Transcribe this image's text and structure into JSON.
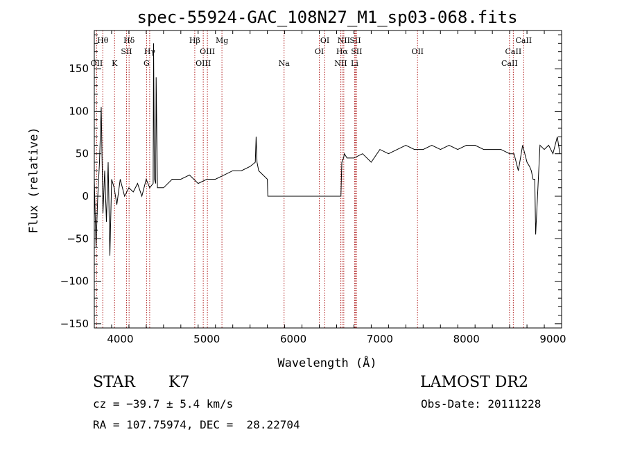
{
  "chart_data": {
    "type": "line",
    "title": "spec-55924-GAC_108N27_M1_sp03-068.fits",
    "xlabel": "Wavelength (Å)",
    "ylabel": "Flux (relative)",
    "xlim": [
      3700,
      9100
    ],
    "ylim": [
      -155,
      195
    ],
    "x_ticks": [
      4000,
      5000,
      6000,
      7000,
      8000,
      9000
    ],
    "y_ticks": [
      -150,
      -100,
      -50,
      0,
      50,
      100,
      150
    ],
    "spectrum": {
      "x": [
        3700,
        3720,
        3740,
        3760,
        3780,
        3800,
        3820,
        3840,
        3860,
        3880,
        3900,
        3930,
        3960,
        4000,
        4050,
        4100,
        4150,
        4200,
        4250,
        4300,
        4340,
        4380,
        4385,
        4395,
        4410,
        4415,
        4430,
        4500,
        4600,
        4700,
        4800,
        4900,
        5000,
        5100,
        5200,
        5300,
        5400,
        5500,
        5560,
        5570,
        5580,
        5600,
        5700,
        5705,
        5720,
        6550,
        6560,
        6580,
        6590,
        6620,
        6700,
        6800,
        6900,
        7000,
        7100,
        7200,
        7300,
        7400,
        7500,
        7600,
        7700,
        7800,
        7900,
        8000,
        8100,
        8200,
        8300,
        8400,
        8500,
        8550,
        8600,
        8650,
        8700,
        8730,
        8750,
        8770,
        8790,
        8800,
        8850,
        8900,
        8950,
        9000,
        9050,
        9080
      ],
      "y": [
        20,
        -60,
        0,
        40,
        105,
        -20,
        30,
        -30,
        40,
        -70,
        20,
        10,
        -10,
        20,
        0,
        10,
        5,
        15,
        0,
        20,
        10,
        15,
        180,
        20,
        15,
        140,
        10,
        10,
        20,
        20,
        25,
        15,
        20,
        20,
        25,
        30,
        30,
        35,
        40,
        70,
        40,
        30,
        20,
        0,
        0,
        0,
        40,
        45,
        50,
        45,
        45,
        50,
        40,
        55,
        50,
        55,
        60,
        55,
        55,
        60,
        55,
        60,
        55,
        60,
        60,
        55,
        55,
        55,
        50,
        50,
        30,
        60,
        40,
        35,
        30,
        20,
        20,
        -45,
        60,
        55,
        60,
        50,
        70,
        50
      ]
    },
    "lines": [
      {
        "label": "Hθ",
        "wavelength": 3798,
        "row": "top"
      },
      {
        "label": "OII",
        "wavelength": 3727,
        "row": "bottom"
      },
      {
        "label": "K",
        "wavelength": 3934,
        "row": "bottom"
      },
      {
        "label": "Hδ",
        "wavelength": 4102,
        "row": "top"
      },
      {
        "label": "SII",
        "wavelength": 4072,
        "row": "middle"
      },
      {
        "label": "Hγ",
        "wavelength": 4340,
        "row": "middle"
      },
      {
        "label": "G",
        "wavelength": 4304,
        "row": "bottom"
      },
      {
        "label": "Hβ",
        "wavelength": 4861,
        "row": "top"
      },
      {
        "label": "OIII",
        "wavelength": 5007,
        "row": "middle"
      },
      {
        "label": "OIII",
        "wavelength": 4959,
        "row": "bottom"
      },
      {
        "label": "Mg",
        "wavelength": 5175,
        "row": "top"
      },
      {
        "label": "Na",
        "wavelength": 5893,
        "row": "bottom"
      },
      {
        "label": "OI",
        "wavelength": 6364,
        "row": "top"
      },
      {
        "label": "OI",
        "wavelength": 6300,
        "row": "middle"
      },
      {
        "label": "NII",
        "wavelength": 6583,
        "row": "top"
      },
      {
        "label": "SII",
        "wavelength": 6716,
        "row": "top"
      },
      {
        "label": "Hα",
        "wavelength": 6563,
        "row": "middle"
      },
      {
        "label": "SII",
        "wavelength": 6731,
        "row": "middle"
      },
      {
        "label": "NII",
        "wavelength": 6548,
        "row": "bottom"
      },
      {
        "label": "Li",
        "wavelength": 6708,
        "row": "bottom"
      },
      {
        "label": "OII",
        "wavelength": 7435,
        "row": "middle"
      },
      {
        "label": "CaII",
        "wavelength": 8662,
        "row": "top"
      },
      {
        "label": "CaII",
        "wavelength": 8542,
        "row": "middle"
      },
      {
        "label": "CaII",
        "wavelength": 8498,
        "row": "bottom"
      }
    ],
    "grid": false,
    "legend": "none"
  },
  "info": {
    "class": "STAR",
    "subclass": "K7",
    "survey": "LAMOST DR2",
    "cz": "cz = −39.7 ± 5.4 km/s",
    "obs_date": "Obs-Date: 20111228",
    "coords": "RA = 107.75974, DEC =  28.22704"
  },
  "colors": {
    "spectrum": "#000000",
    "line_markers": "#b22222",
    "axes": "#000000"
  }
}
